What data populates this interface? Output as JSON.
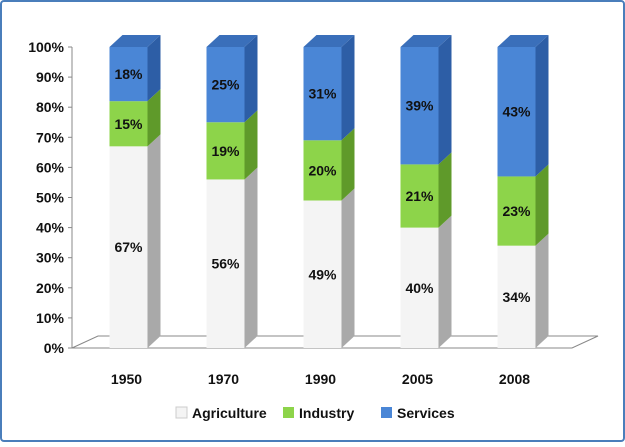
{
  "chart_data": {
    "type": "bar",
    "stacked": true,
    "three_d": true,
    "categories": [
      "1950",
      "1970",
      "1990",
      "2005",
      "2008"
    ],
    "series": [
      {
        "name": "Agriculture",
        "values": [
          67,
          56,
          49,
          40,
          34
        ],
        "color": "#f4f4f4",
        "side_color": "#a9a9a9",
        "top_color": "#d0d0d0"
      },
      {
        "name": "Industry",
        "values": [
          15,
          19,
          20,
          21,
          23
        ],
        "color": "#8dd44a",
        "side_color": "#5f9a2a",
        "top_color": "#76b83a"
      },
      {
        "name": "Services",
        "values": [
          18,
          25,
          31,
          39,
          43
        ],
        "color": "#4a86d6",
        "side_color": "#2d5ea6",
        "top_color": "#3a6fba"
      }
    ],
    "data_labels": [
      [
        "67%",
        "56%",
        "49%",
        "40%",
        "34%"
      ],
      [
        "15%",
        "19%",
        "20%",
        "21%",
        "23%"
      ],
      [
        "18%",
        "25%",
        "31%",
        "39%",
        "43%"
      ]
    ],
    "y_ticks": [
      "0%",
      "10%",
      "20%",
      "30%",
      "40%",
      "50%",
      "60%",
      "70%",
      "80%",
      "90%",
      "100%"
    ],
    "ylim": [
      0,
      100
    ],
    "title": "",
    "xlabel": "",
    "ylabel": "",
    "grid": false,
    "legend_position": "bottom",
    "border_color": "#4a7ebb"
  }
}
